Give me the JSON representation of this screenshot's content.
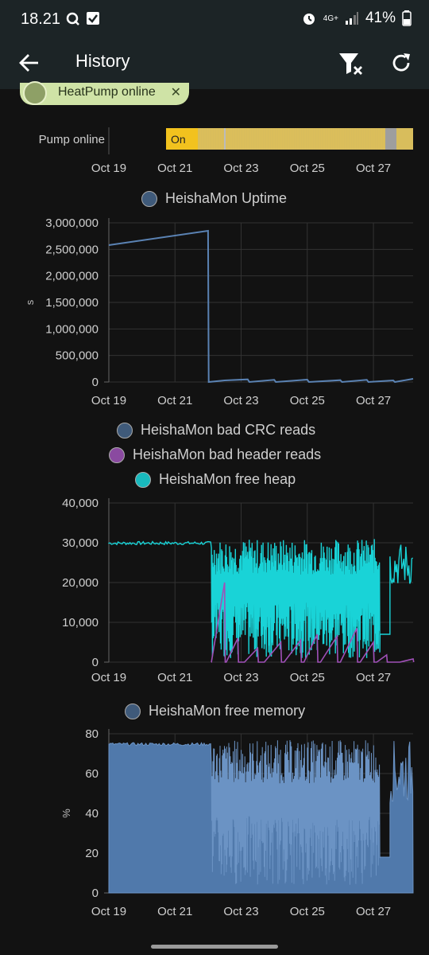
{
  "status_bar": {
    "time": "18.21",
    "network": "4G+",
    "battery": "41%",
    "icons": [
      "q-icon",
      "checkbox-icon",
      "alarm-icon",
      "signal-icon",
      "battery-icon"
    ]
  },
  "app_bar": {
    "title": "History",
    "icons": [
      "back-arrow-icon",
      "filter-clear-icon",
      "refresh-icon"
    ]
  },
  "filter_chip": {
    "label": "HeatPump online"
  },
  "timeline": {
    "label": "Pump online",
    "state_label": "On",
    "colors": {
      "on": "#e8c04a",
      "on_dim": "#c9a94f",
      "unknown": "#9e9e9e"
    }
  },
  "x_ticks": [
    "Oct 19",
    "Oct 21",
    "Oct 23",
    "Oct 25",
    "Oct 27"
  ],
  "chart_data": [
    {
      "type": "line",
      "legend": [
        "HeishaMon Uptime"
      ],
      "ylabel": "s",
      "yticks": [
        "3,000,000",
        "2,500,000",
        "2,000,000",
        "1,500,000",
        "1,000,000",
        "500,000",
        "0"
      ],
      "ylim": [
        0,
        3000000
      ],
      "grid": true,
      "series": [
        {
          "name": "HeishaMon Uptime",
          "color": "#4a6f9a",
          "x_days": [
            0,
            3.0,
            3.02,
            3.5,
            4.2,
            4.25,
            5.0,
            5.05,
            6.0,
            6.05,
            7.0,
            7.05,
            7.8,
            7.85,
            8.6,
            8.65,
            9.2
          ],
          "values": [
            2580000,
            2850000,
            0,
            30000,
            50000,
            0,
            40000,
            0,
            45000,
            0,
            35000,
            0,
            40000,
            0,
            30000,
            0,
            60000
          ]
        }
      ]
    },
    {
      "type": "line",
      "legend": [
        "HeishaMon bad CRC reads",
        "HeishaMon bad header reads",
        "HeishaMon free heap"
      ],
      "yticks": [
        "40,000",
        "30,000",
        "20,000",
        "10,000",
        "0"
      ],
      "ylim": [
        0,
        40000
      ],
      "grid": true,
      "series": [
        {
          "name": "HeishaMon bad CRC reads",
          "color": "#3f5a7a"
        },
        {
          "name": "HeishaMon bad header reads",
          "color": "#8a4aa0"
        },
        {
          "name": "HeishaMon free heap",
          "color": "#19d3d7"
        }
      ]
    },
    {
      "type": "area",
      "legend": [
        "HeishaMon free memory"
      ],
      "ylabel": "%",
      "yticks": [
        "80",
        "60",
        "40",
        "20",
        "0"
      ],
      "ylim": [
        0,
        80
      ],
      "grid": true,
      "series": [
        {
          "name": "HeishaMon free memory",
          "color": "#5079ab"
        }
      ]
    }
  ]
}
